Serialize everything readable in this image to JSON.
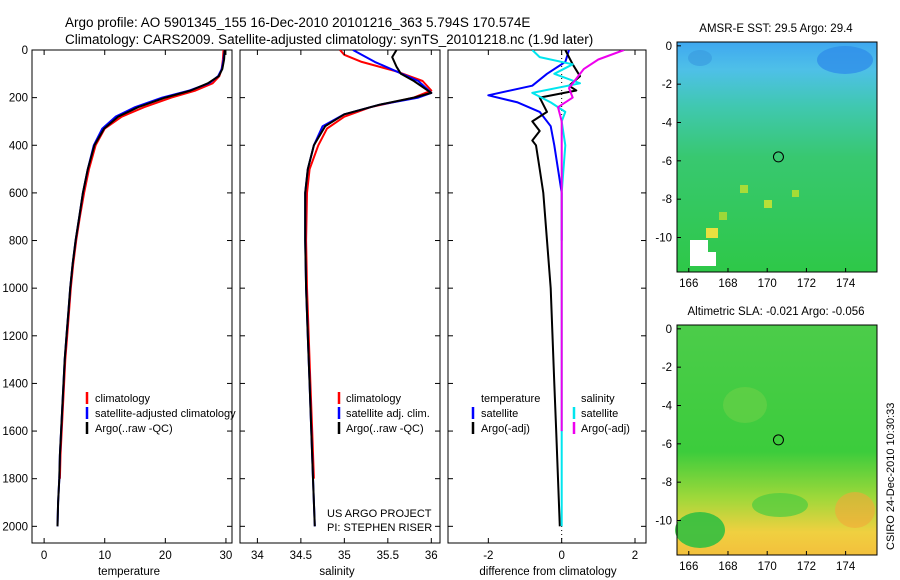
{
  "title": {
    "line1": "Argo profile: AO 5901345_155 16-Dec-2010 20101216_363 5.794S 170.574E",
    "line2": "Climatology: CARS2009. Satellite-adjusted climatology: synTS_20101218.nc (1.9d later)"
  },
  "side_label": "CSIRO 24-Dec-2010 10:30:33",
  "credit": {
    "line1": "US ARGO PROJECT",
    "line2": "PI: STEPHEN RISER"
  },
  "colors": {
    "climatology": "#ff0000",
    "satellite": "#0000ff",
    "argo": "#000000",
    "cyan": "#00e5ee",
    "magenta": "#ee00ee"
  },
  "chart_data": [
    {
      "type": "line",
      "xlabel": "temperature",
      "xticks": [
        0,
        10,
        20,
        30
      ],
      "xlim": [
        -2,
        31
      ],
      "ylim": [
        0,
        2070
      ],
      "yticks": [
        0,
        200,
        400,
        600,
        800,
        1000,
        1200,
        1400,
        1600,
        1800,
        2000
      ],
      "legend": [
        "climatology",
        "satellite-adjusted climatology",
        "Argo(..raw -QC)"
      ],
      "series": [
        {
          "name": "climatology",
          "color": "red",
          "points": [
            [
              29.6,
              0
            ],
            [
              29.5,
              40
            ],
            [
              29.3,
              80
            ],
            [
              28.9,
              110
            ],
            [
              27.8,
              140
            ],
            [
              25.0,
              170
            ],
            [
              21.0,
              200
            ],
            [
              16.5,
              240
            ],
            [
              12.8,
              280
            ],
            [
              10.0,
              330
            ],
            [
              8.5,
              400
            ],
            [
              7.4,
              500
            ],
            [
              6.6,
              600
            ],
            [
              5.9,
              700
            ],
            [
              5.3,
              800
            ],
            [
              4.8,
              900
            ],
            [
              4.4,
              1000
            ],
            [
              4.1,
              1100
            ],
            [
              3.8,
              1200
            ],
            [
              3.5,
              1300
            ],
            [
              3.3,
              1400
            ],
            [
              3.1,
              1500
            ],
            [
              2.9,
              1600
            ],
            [
              2.7,
              1700
            ],
            [
              2.6,
              1800
            ]
          ]
        },
        {
          "name": "satellite-adjusted climatology",
          "color": "blue",
          "points": [
            [
              29.8,
              0
            ],
            [
              29.6,
              40
            ],
            [
              29.3,
              80
            ],
            [
              28.7,
              110
            ],
            [
              27.2,
              140
            ],
            [
              24.0,
              170
            ],
            [
              19.5,
              200
            ],
            [
              15.0,
              240
            ],
            [
              11.8,
              280
            ],
            [
              9.6,
              330
            ],
            [
              8.2,
              400
            ],
            [
              7.2,
              500
            ],
            [
              6.4,
              600
            ],
            [
              5.8,
              700
            ],
            [
              5.2,
              800
            ],
            [
              4.7,
              900
            ],
            [
              4.3,
              1000
            ],
            [
              4.0,
              1100
            ],
            [
              3.7,
              1200
            ],
            [
              3.4,
              1300
            ],
            [
              3.2,
              1400
            ],
            [
              3.0,
              1500
            ],
            [
              2.8,
              1600
            ],
            [
              2.6,
              1700
            ],
            [
              2.5,
              1800
            ],
            [
              2.3,
              1900
            ],
            [
              2.2,
              2000
            ]
          ]
        },
        {
          "name": "Argo(..raw -QC)",
          "color": "black",
          "points": [
            [
              29.8,
              0
            ],
            [
              29.7,
              40
            ],
            [
              29.4,
              80
            ],
            [
              28.8,
              110
            ],
            [
              27.0,
              140
            ],
            [
              24.2,
              170
            ],
            [
              20.0,
              200
            ],
            [
              15.5,
              240
            ],
            [
              12.2,
              280
            ],
            [
              9.9,
              330
            ],
            [
              8.3,
              400
            ],
            [
              7.2,
              500
            ],
            [
              6.4,
              600
            ],
            [
              5.8,
              700
            ],
            [
              5.2,
              800
            ],
            [
              4.7,
              900
            ],
            [
              4.3,
              1000
            ],
            [
              4.0,
              1100
            ],
            [
              3.7,
              1200
            ],
            [
              3.4,
              1300
            ],
            [
              3.2,
              1400
            ],
            [
              3.0,
              1500
            ],
            [
              2.8,
              1600
            ],
            [
              2.6,
              1700
            ],
            [
              2.5,
              1800
            ],
            [
              2.3,
              1900
            ],
            [
              2.2,
              2000
            ]
          ]
        }
      ]
    },
    {
      "type": "line",
      "xlabel": "salinity",
      "xticks": [
        34,
        34.5,
        35,
        35.5,
        36
      ],
      "xticklabels": [
        "34",
        "34.5",
        "35",
        "35.5",
        "36"
      ],
      "xlim": [
        33.8,
        36.1
      ],
      "ylim": [
        0,
        2070
      ],
      "legend": [
        "climatology",
        "satellite adj. clim.",
        "Argo(..raw -QC)"
      ],
      "series": [
        {
          "name": "climatology",
          "color": "red",
          "points": [
            [
              34.95,
              0
            ],
            [
              35.0,
              20
            ],
            [
              35.2,
              50
            ],
            [
              35.6,
              90
            ],
            [
              35.9,
              130
            ],
            [
              36.0,
              170
            ],
            [
              35.8,
              200
            ],
            [
              35.3,
              240
            ],
            [
              35.0,
              280
            ],
            [
              34.8,
              330
            ],
            [
              34.7,
              400
            ],
            [
              34.6,
              500
            ],
            [
              34.57,
              600
            ],
            [
              34.56,
              800
            ],
            [
              34.57,
              1000
            ],
            [
              34.59,
              1200
            ],
            [
              34.61,
              1400
            ],
            [
              34.63,
              1600
            ],
            [
              34.65,
              1800
            ]
          ]
        },
        {
          "name": "satellite adj. clim.",
          "color": "blue",
          "points": [
            [
              35.1,
              0
            ],
            [
              35.2,
              20
            ],
            [
              35.35,
              50
            ],
            [
              35.6,
              90
            ],
            [
              35.85,
              130
            ],
            [
              36.0,
              180
            ],
            [
              35.85,
              200
            ],
            [
              35.4,
              230
            ],
            [
              35.0,
              270
            ],
            [
              34.75,
              320
            ],
            [
              34.65,
              400
            ],
            [
              34.58,
              500
            ],
            [
              34.55,
              600
            ],
            [
              34.55,
              800
            ],
            [
              34.56,
              1000
            ],
            [
              34.58,
              1200
            ],
            [
              34.6,
              1400
            ],
            [
              34.62,
              1600
            ],
            [
              34.64,
              1800
            ],
            [
              34.66,
              2000
            ]
          ]
        },
        {
          "name": "Argo(..raw -QC)",
          "color": "black",
          "points": [
            [
              35.6,
              0
            ],
            [
              35.55,
              30
            ],
            [
              35.6,
              70
            ],
            [
              35.65,
              100
            ],
            [
              35.8,
              130
            ],
            [
              36.0,
              180
            ],
            [
              35.8,
              200
            ],
            [
              35.4,
              230
            ],
            [
              35.0,
              270
            ],
            [
              34.78,
              320
            ],
            [
              34.65,
              400
            ],
            [
              34.58,
              500
            ],
            [
              34.55,
              600
            ],
            [
              34.55,
              800
            ],
            [
              34.56,
              1000
            ],
            [
              34.58,
              1200
            ],
            [
              34.6,
              1400
            ],
            [
              34.62,
              1600
            ],
            [
              34.64,
              1800
            ],
            [
              34.66,
              2000
            ]
          ]
        }
      ]
    },
    {
      "type": "line",
      "xlabel": "difference from climatology",
      "xticks": [
        -2,
        0,
        2
      ],
      "xlim": [
        -3.1,
        2.3
      ],
      "ylim": [
        0,
        2070
      ],
      "legend_left_header": "temperature",
      "legend_right_header": "salinity",
      "legend": [
        "satellite",
        "Argo(-adj)",
        "satellite",
        "Argo(-adj)"
      ],
      "series": [
        {
          "name": "satellite",
          "group": "temperature",
          "color": "blue",
          "points": [
            [
              0.2,
              0
            ],
            [
              0.1,
              50
            ],
            [
              -0.4,
              100
            ],
            [
              -0.8,
              150
            ],
            [
              -2.0,
              190
            ],
            [
              -1.2,
              220
            ],
            [
              -0.6,
              260
            ],
            [
              -0.3,
              320
            ],
            [
              -0.2,
              400
            ],
            [
              -0.1,
              500
            ],
            [
              0,
              600
            ],
            [
              0,
              800
            ]
          ]
        },
        {
          "name": "Argo(-adj)",
          "group": "temperature",
          "color": "black",
          "points": [
            [
              0.1,
              0
            ],
            [
              0.3,
              60
            ],
            [
              0.5,
              110
            ],
            [
              0.2,
              150
            ],
            [
              0.4,
              170
            ],
            [
              -0.6,
              200
            ],
            [
              -0.4,
              260
            ],
            [
              -0.8,
              300
            ],
            [
              -0.6,
              340
            ],
            [
              -0.8,
              380
            ],
            [
              -0.7,
              400
            ],
            [
              -0.6,
              500
            ],
            [
              -0.5,
              600
            ],
            [
              -0.4,
              800
            ],
            [
              -0.3,
              1000
            ],
            [
              -0.25,
              1200
            ],
            [
              -0.2,
              1400
            ],
            [
              -0.15,
              1600
            ],
            [
              -0.1,
              1800
            ],
            [
              -0.05,
              2000
            ]
          ]
        },
        {
          "name": "satellite",
          "group": "salinity",
          "color": "cyan",
          "points": [
            [
              -0.8,
              0
            ],
            [
              -0.6,
              30
            ],
            [
              0.3,
              60
            ],
            [
              -0.2,
              100
            ],
            [
              0.5,
              140
            ],
            [
              -0.8,
              180
            ],
            [
              -0.3,
              220
            ],
            [
              0.1,
              260
            ],
            [
              0,
              300
            ],
            [
              0.1,
              400
            ],
            [
              0,
              600
            ],
            [
              0,
              800
            ],
            [
              0,
              1000
            ],
            [
              0,
              1200
            ],
            [
              0,
              1600
            ],
            [
              0,
              2000
            ]
          ]
        },
        {
          "name": "Argo(-adj)",
          "group": "salinity",
          "color": "magenta",
          "points": [
            [
              1.7,
              0
            ],
            [
              1.0,
              40
            ],
            [
              0.6,
              80
            ],
            [
              0.4,
              120
            ],
            [
              0.2,
              160
            ],
            [
              0.3,
              200
            ],
            [
              -0.1,
              240
            ],
            [
              0,
              300
            ],
            [
              0,
              500
            ],
            [
              0,
              800
            ],
            [
              0,
              1200
            ],
            [
              0,
              1600
            ]
          ]
        }
      ]
    },
    {
      "type": "heatmap",
      "title": "AMSR-E SST: 29.5 Argo: 29.4",
      "xticks": [
        166,
        168,
        170,
        172,
        174
      ],
      "yticks": [
        0,
        -2,
        -4,
        -6,
        -8,
        -10
      ],
      "xlim": [
        165.4,
        175.6
      ],
      "ylim": [
        -11.8,
        0.2
      ],
      "marker": {
        "lon": 170.574,
        "lat": -5.794
      }
    },
    {
      "type": "heatmap",
      "title": "Altimetric SLA: -0.021 Argo: -0.056",
      "xticks": [
        166,
        168,
        170,
        172,
        174
      ],
      "yticks": [
        0,
        -2,
        -4,
        -6,
        -8,
        -10
      ],
      "xlim": [
        165.4,
        175.6
      ],
      "ylim": [
        -11.8,
        0.2
      ],
      "marker": {
        "lon": 170.574,
        "lat": -5.794
      }
    }
  ]
}
